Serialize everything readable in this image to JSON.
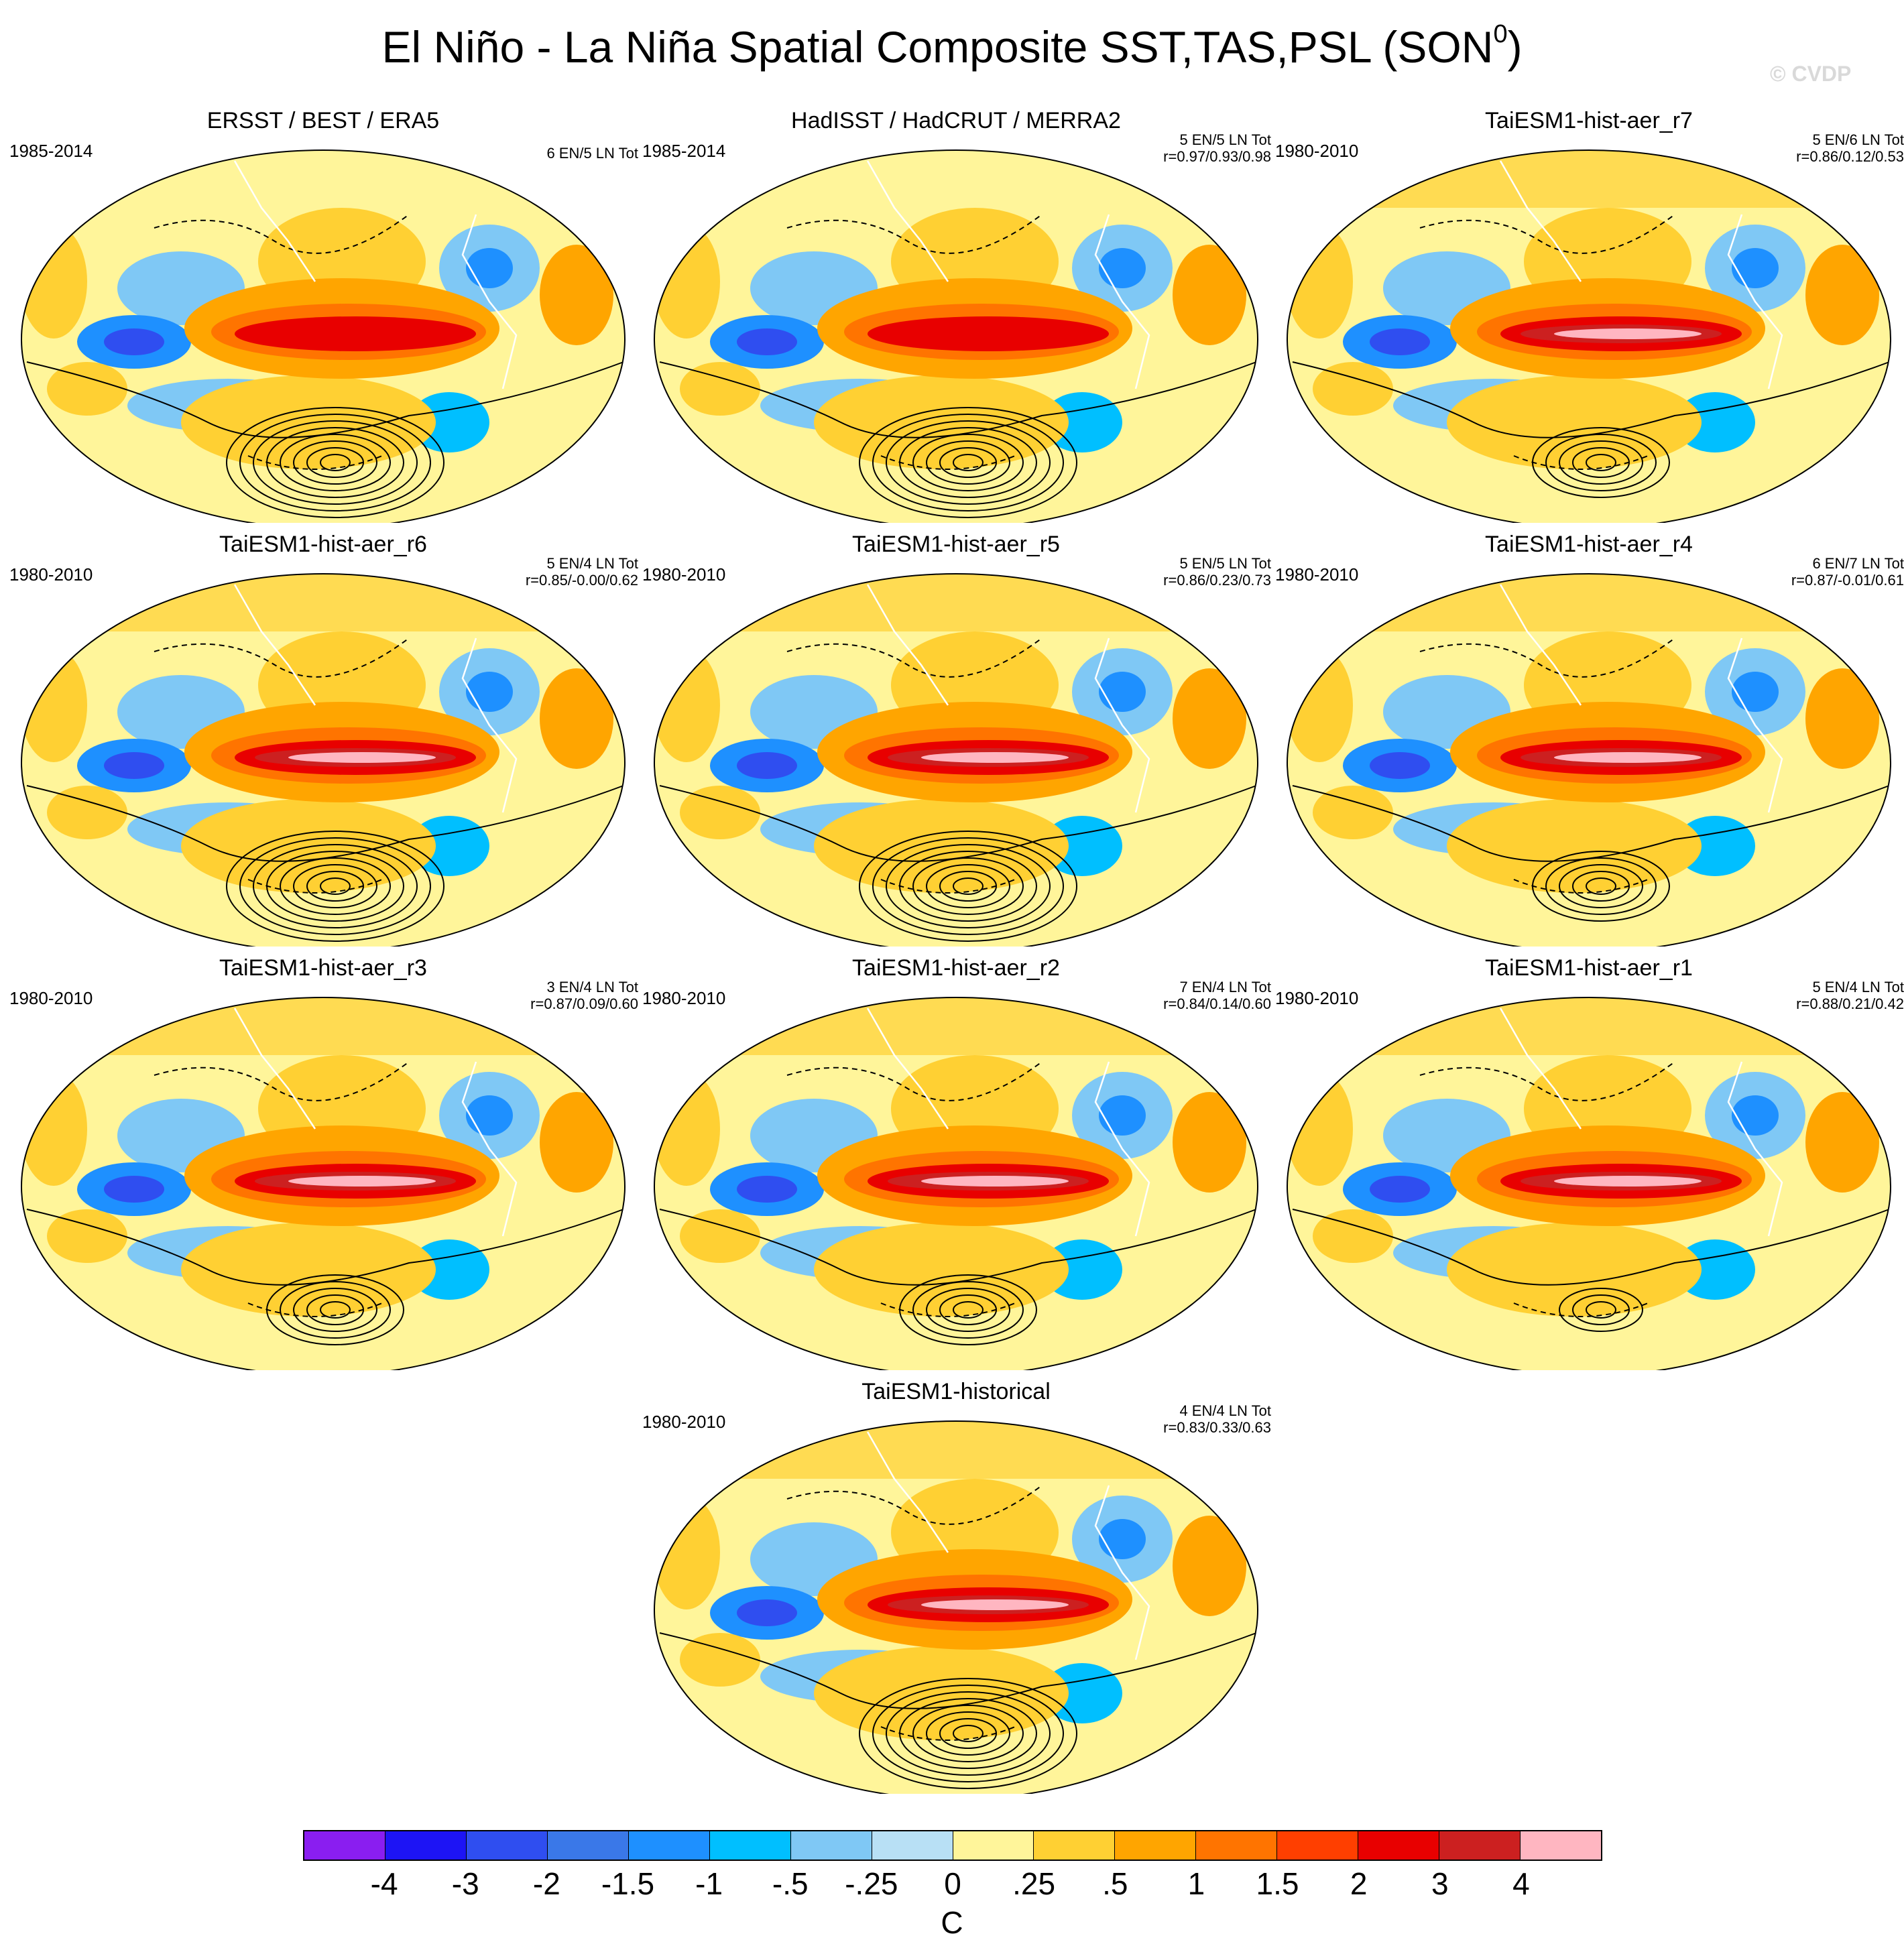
{
  "title": {
    "main": "El Niño - La Niña Spatial Composite SST,TAS,PSL (SON",
    "sup": "0",
    "close": ")"
  },
  "watermark": "© CVDP",
  "panels": [
    {
      "title": "ERSST / BEST / ERA5",
      "years": "1985-2014",
      "counts": "6 EN/5 LN Tot",
      "corr": "",
      "ninoPeak": "4",
      "psl": "strong"
    },
    {
      "title": "HadISST / HadCRUT / MERRA2",
      "years": "1985-2014",
      "counts": "5 EN/5 LN Tot",
      "corr": "r=0.97/0.93/0.98",
      "ninoPeak": "4",
      "psl": "strong"
    },
    {
      "title": "TaiESM1-hist-aer_r7",
      "years": "1980-2010",
      "counts": "5 EN/6 LN Tot",
      "corr": "r=0.86/0.12/0.53",
      "ninoPeak": ">4",
      "psl": "medium"
    },
    {
      "title": "TaiESM1-hist-aer_r6",
      "years": "1980-2010",
      "counts": "5 EN/4 LN Tot",
      "corr": "r=0.85/-0.00/0.62",
      "ninoPeak": ">4",
      "psl": "strong"
    },
    {
      "title": "TaiESM1-hist-aer_r5",
      "years": "1980-2010",
      "counts": "5 EN/5 LN Tot",
      "corr": "r=0.86/0.23/0.73",
      "ninoPeak": ">4",
      "psl": "strong"
    },
    {
      "title": "TaiESM1-hist-aer_r4",
      "years": "1980-2010",
      "counts": "6 EN/7 LN Tot",
      "corr": "r=0.87/-0.01/0.61",
      "ninoPeak": ">4",
      "psl": "medium"
    },
    {
      "title": "TaiESM1-hist-aer_r3",
      "years": "1980-2010",
      "counts": "3 EN/4 LN Tot",
      "corr": "r=0.87/0.09/0.60",
      "ninoPeak": ">4",
      "psl": "medium"
    },
    {
      "title": "TaiESM1-hist-aer_r2",
      "years": "1980-2010",
      "counts": "7 EN/4 LN Tot",
      "corr": "r=0.84/0.14/0.60",
      "ninoPeak": ">4",
      "psl": "medium"
    },
    {
      "title": "TaiESM1-hist-aer_r1",
      "years": "1980-2010",
      "counts": "5 EN/4 LN Tot",
      "corr": "r=0.88/0.21/0.42",
      "ninoPeak": ">4",
      "psl": "weak"
    },
    {
      "title": "TaiESM1-historical",
      "years": "1980-2010",
      "counts": "4 EN/4 LN Tot",
      "corr": "r=0.83/0.33/0.63",
      "ninoPeak": ">4",
      "psl": "strong"
    }
  ],
  "colorbar": {
    "levels": [
      "-4",
      "-3",
      "-2",
      "-1.5",
      "-1",
      "-.5",
      "-.25",
      "0",
      ".25",
      ".5",
      "1",
      "1.5",
      "2",
      "3",
      "4"
    ],
    "colors": [
      "#8a1ef0",
      "#1d14f5",
      "#2f4ef0",
      "#3a78e8",
      "#1e90ff",
      "#00bfff",
      "#7fc8f5",
      "#b8e0f5",
      "#fff59a",
      "#ffd033",
      "#ffa500",
      "#ff7400",
      "#ff3f00",
      "#e80000",
      "#cc2020",
      "#ffb6c1"
    ],
    "units": "C"
  }
}
